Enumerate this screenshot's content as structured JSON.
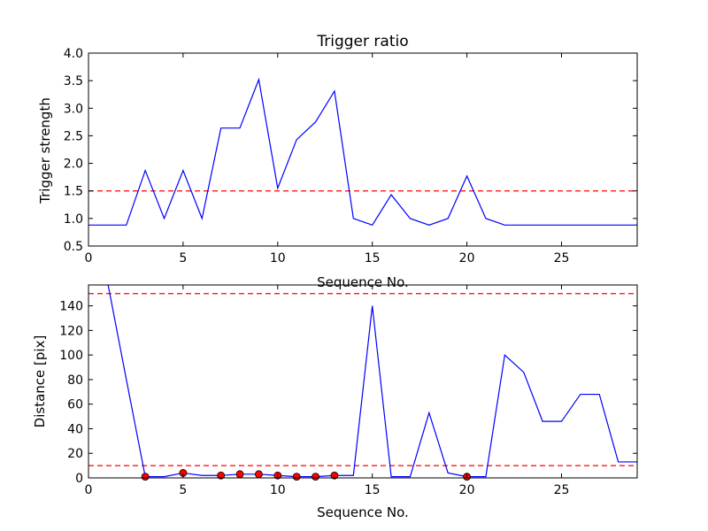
{
  "chart_data": [
    {
      "type": "line",
      "title": "Trigger ratio",
      "xlabel": "Sequence No.",
      "ylabel": "Trigger strength",
      "xlim": [
        0,
        29
      ],
      "ylim": [
        0.5,
        4.0
      ],
      "x_ticks": [
        "0",
        "5",
        "10",
        "15",
        "20",
        "25"
      ],
      "y_ticks": [
        "0.5",
        "1.0",
        "1.5",
        "2.0",
        "2.5",
        "3.0",
        "3.5",
        "4.0"
      ],
      "series": [
        {
          "color": "#0000ff",
          "x": [
            0,
            1,
            2,
            3,
            4,
            5,
            6,
            7,
            8,
            9,
            10,
            11,
            12,
            13,
            14,
            15,
            16,
            17,
            18,
            19,
            20,
            21,
            22,
            23,
            24,
            25,
            26,
            27,
            28,
            29
          ],
          "values": [
            0.88,
            0.88,
            0.88,
            1.87,
            1.0,
            1.87,
            1.0,
            2.64,
            2.64,
            3.52,
            1.55,
            2.43,
            2.75,
            3.31,
            1.0,
            0.88,
            1.43,
            1.0,
            0.88,
            1.0,
            1.77,
            1.0,
            0.88,
            0.88,
            0.88,
            0.88,
            0.88,
            0.88,
            0.88,
            0.88
          ]
        }
      ],
      "reference_lines": [
        {
          "y": 1.5,
          "color": "#ff0000",
          "style": "dashed"
        }
      ]
    },
    {
      "type": "line",
      "title": "",
      "xlabel": "Sequence No.",
      "ylabel": "Distance [pix]",
      "xlim": [
        0,
        29
      ],
      "ylim": [
        0,
        157
      ],
      "x_ticks": [
        "0",
        "5",
        "10",
        "15",
        "20",
        "25"
      ],
      "y_ticks": [
        "0",
        "20",
        "40",
        "60",
        "80",
        "100",
        "120",
        "140"
      ],
      "series": [
        {
          "color": "#0000ff",
          "x": [
            1,
            2,
            3,
            4,
            5,
            6,
            7,
            8,
            9,
            10,
            11,
            12,
            13,
            14,
            15,
            16,
            17,
            18,
            19,
            20,
            21,
            22,
            23,
            24,
            25,
            26,
            27,
            28,
            29
          ],
          "values": [
            160,
            80,
            1,
            1,
            4,
            2,
            2,
            3,
            3,
            2,
            1,
            1,
            2,
            2,
            140,
            1,
            1,
            53,
            4,
            1,
            1,
            100,
            86,
            46,
            46,
            68,
            68,
            13,
            13
          ]
        }
      ],
      "markers": {
        "color": "#ff0000",
        "x": [
          3,
          5,
          7,
          8,
          9,
          10,
          11,
          12,
          13,
          20
        ],
        "values": [
          1,
          4,
          2,
          3,
          3,
          2,
          1,
          1,
          2,
          1
        ]
      },
      "reference_lines": [
        {
          "y": 150,
          "color": "#ff0000",
          "style": "dashed"
        },
        {
          "y": 10,
          "color": "#ff0000",
          "style": "dashed"
        }
      ]
    }
  ]
}
